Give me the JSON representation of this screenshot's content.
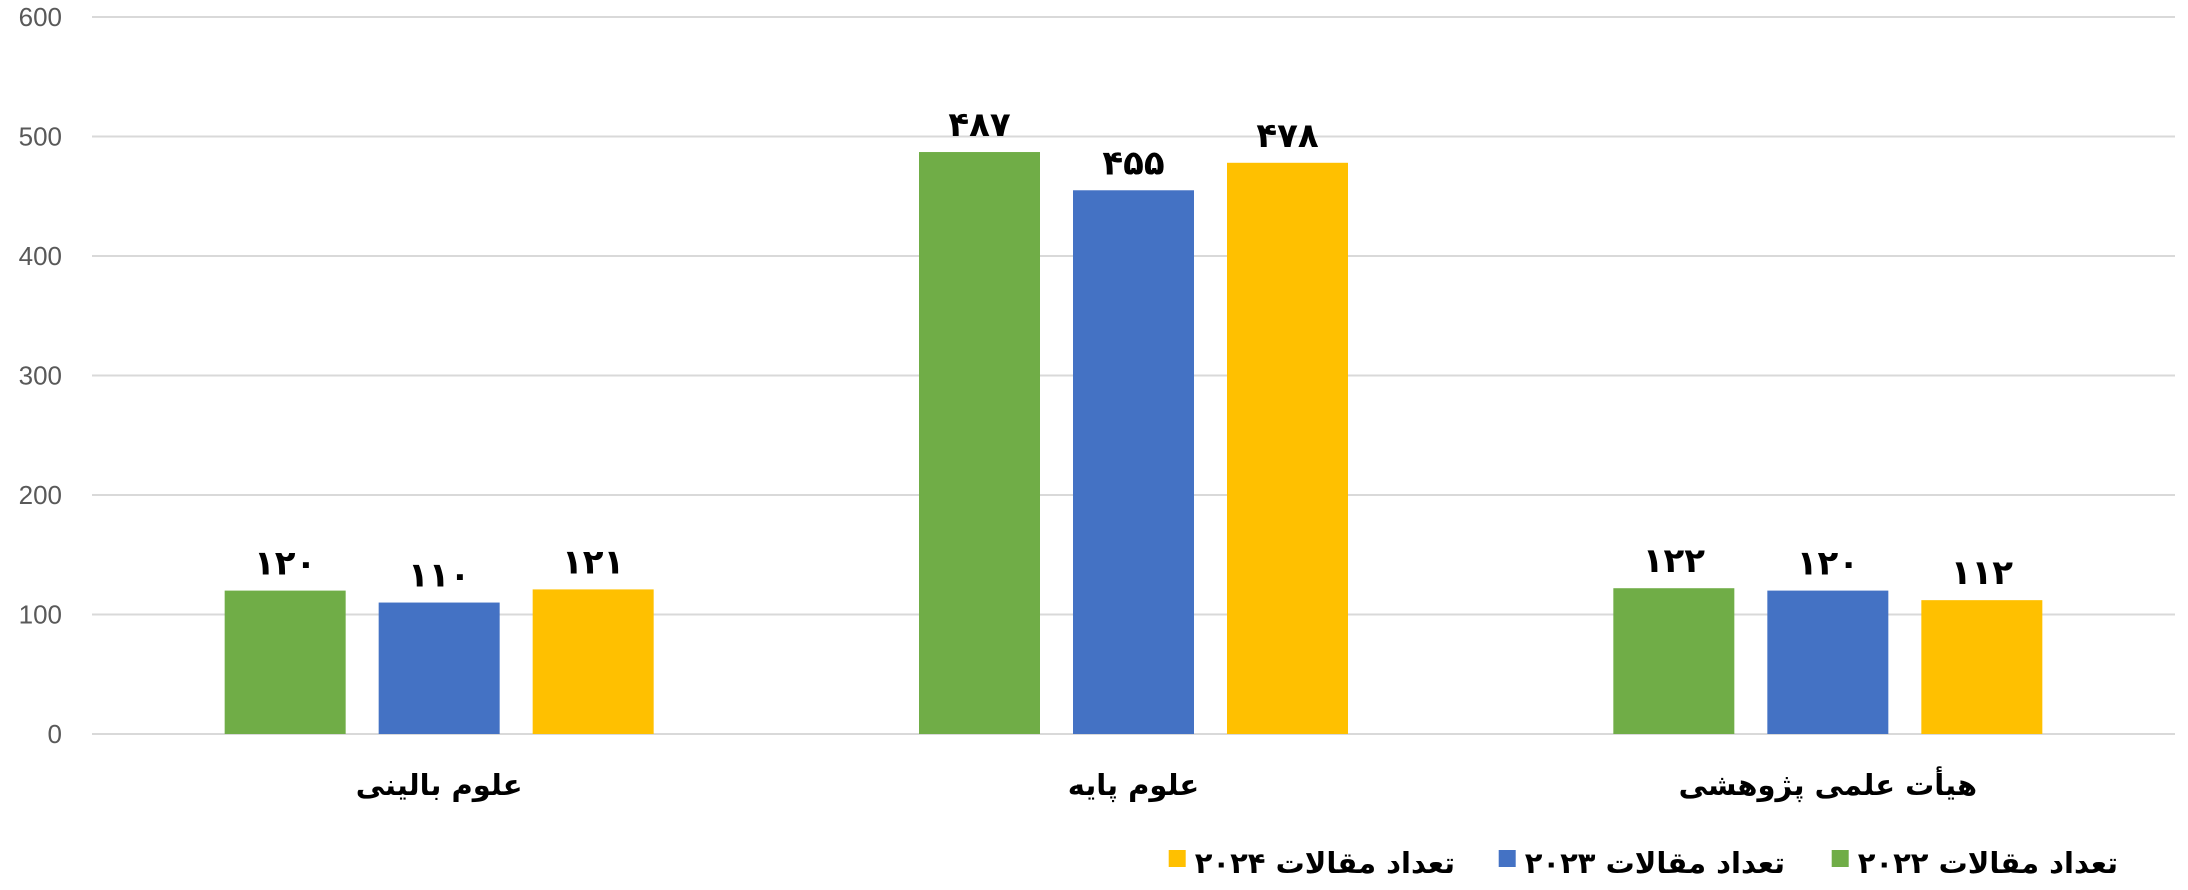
{
  "chart_data": {
    "type": "bar",
    "categories": [
      "علوم بالینی",
      "علوم پایه",
      "هیأت علمی پژوهشی"
    ],
    "series": [
      {
        "name": "تعداد مقالات ۲۰۲۲",
        "color": "#70AD47",
        "values": [
          120,
          487,
          122
        ],
        "labels": [
          "۱۲۰",
          "۴۸۷",
          "۱۲۲"
        ]
      },
      {
        "name": "تعداد مقالات ۲۰۲۳",
        "color": "#4472C4",
        "values": [
          110,
          455,
          120
        ],
        "labels": [
          "۱۱۰",
          "۴۵۵",
          "۱۲۰"
        ]
      },
      {
        "name": "تعداد مقالات ۲۰۲۴",
        "color": "#FFC000",
        "values": [
          121,
          478,
          112
        ],
        "labels": [
          "۱۲۱",
          "۴۷۸",
          "۱۱۲"
        ]
      }
    ],
    "yticks": [
      "0",
      "100",
      "200",
      "300",
      "400",
      "500",
      "600"
    ],
    "ylim": [
      0,
      600
    ],
    "grid": true,
    "legend": "bottom"
  }
}
